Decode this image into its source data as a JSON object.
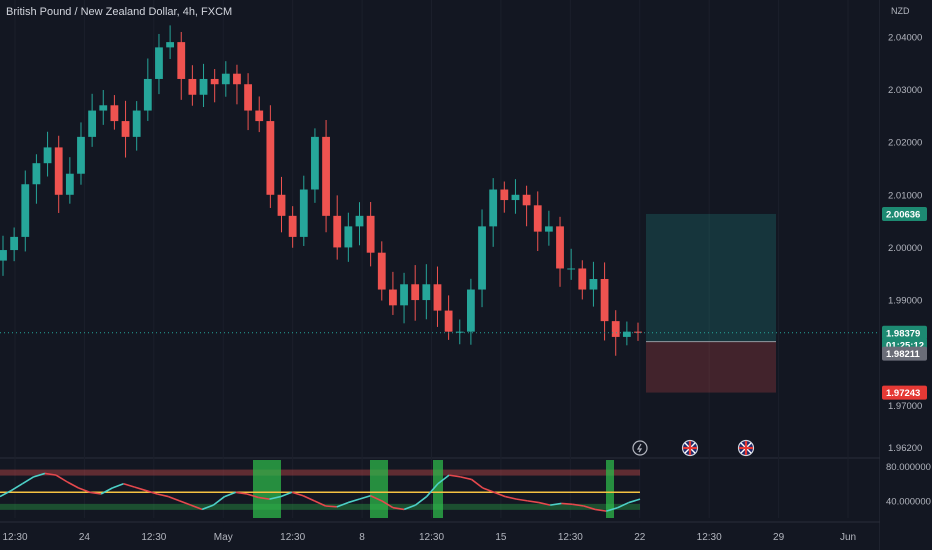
{
  "chart_title": "British Pound / New Zealand Dollar, 4h, FXCM",
  "currency": "NZD",
  "chart_data": {
    "type": "candlestick",
    "title": "British Pound / New Zealand Dollar, 4h, FXCM",
    "price_axis": {
      "ticks": [
        "2.04000",
        "2.03000",
        "2.02000",
        "2.01000",
        "2.00000",
        "1.99000",
        "1.98000",
        "1.97000",
        "1.96200"
      ],
      "range": [
        1.96,
        2.047
      ]
    },
    "time_axis": {
      "ticks": [
        "12:30",
        "24",
        "12:30",
        "May",
        "12:30",
        "8",
        "12:30",
        "15",
        "12:30",
        "22",
        "12:30",
        "29",
        "Jun"
      ]
    },
    "price_series": [
      1.9995,
      2.002,
      2.012,
      2.016,
      2.019,
      2.01,
      2.014,
      2.021,
      2.026,
      2.027,
      2.024,
      2.021,
      2.026,
      2.032,
      2.038,
      2.039,
      2.032,
      2.029,
      2.032,
      2.031,
      2.033,
      2.031,
      2.026,
      2.024,
      2.01,
      2.006,
      2.002,
      2.011,
      2.021,
      2.006,
      2.0,
      2.004,
      2.006,
      1.999,
      1.992,
      1.989,
      1.993,
      1.99,
      1.993,
      1.988,
      1.984,
      1.984,
      1.992,
      2.004,
      2.011,
      2.009,
      2.01,
      2.008,
      2.003,
      2.004,
      1.996,
      1.996,
      1.992,
      1.994,
      1.986,
      1.983,
      1.984,
      1.9838
    ],
    "price_labels": {
      "take_profit": "2.00636",
      "current": "1.98379",
      "countdown": "01:25:12",
      "entry": "1.98211",
      "stop_loss": "1.97243"
    },
    "position": {
      "target": 2.00636,
      "entry": 1.98211,
      "stop": 1.97243,
      "current": 1.98379
    },
    "event_icons": [
      "lightning-icon",
      "uk-flag-icon",
      "uk-flag-icon"
    ],
    "oscillator": {
      "ticks": [
        "80.000000",
        "40.000000"
      ],
      "range": [
        20,
        90
      ],
      "upper_band": 73,
      "lower_band": 33,
      "signal_level": 50,
      "values": [
        45,
        52,
        60,
        68,
        72,
        70,
        62,
        55,
        50,
        48,
        55,
        60,
        56,
        52,
        48,
        45,
        40,
        35,
        30,
        35,
        45,
        50,
        48,
        44,
        42,
        45,
        50,
        46,
        40,
        34,
        33,
        38,
        42,
        46,
        40,
        32,
        30,
        35,
        45,
        60,
        70,
        68,
        65,
        55,
        50,
        45,
        42,
        40,
        38,
        35,
        37,
        36,
        34,
        30,
        28,
        32,
        38,
        42
      ]
    },
    "colors": {
      "background": "#131722",
      "up_candle": "#26a69a",
      "down_candle": "#ef5350",
      "take_profit_zone": "#26a69a",
      "stop_loss_zone": "#ef5350",
      "oscillator_signal": "#f5c242",
      "oscillator_highlight": "#2db74a"
    }
  }
}
